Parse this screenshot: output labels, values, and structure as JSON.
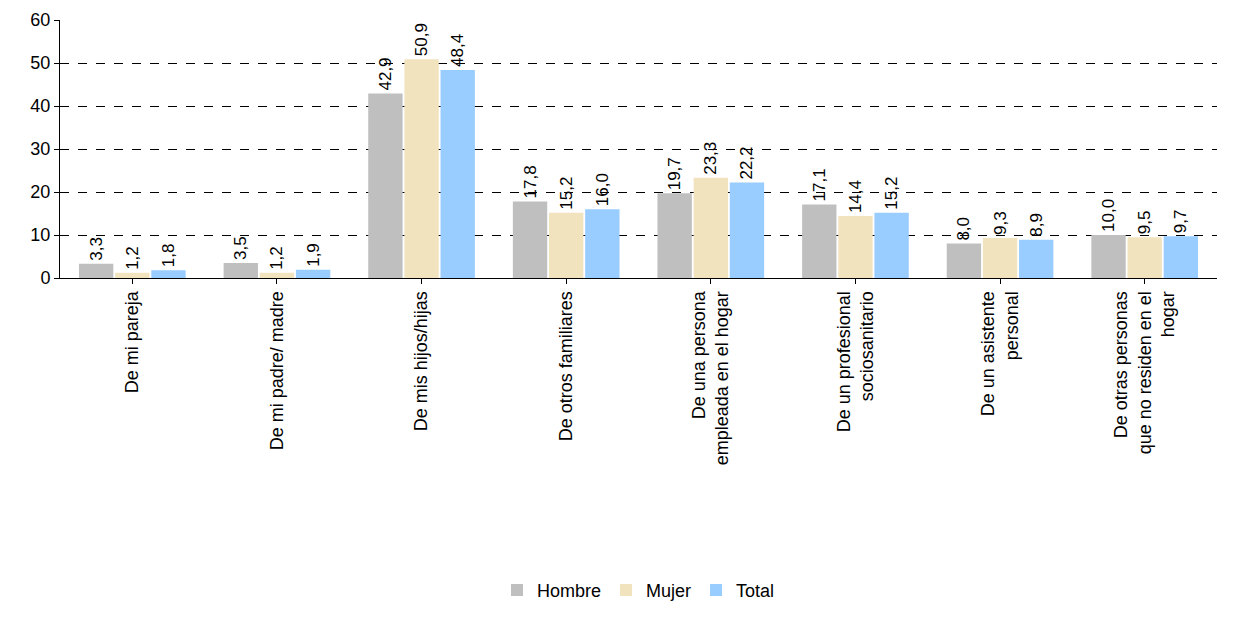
{
  "chart_data": {
    "type": "bar",
    "categories": [
      "De mi pareja",
      "De mi padre/ madre",
      "De mis hijos/hijas",
      "De otros familiares",
      "De una persona empleada en el hogar",
      "De un profesional sociosanitario",
      "De un asistente personal",
      "De otras personas que no residen en el hogar"
    ],
    "series": [
      {
        "name": "Hombre",
        "color": "#bfbfbf",
        "values": [
          3.3,
          3.5,
          42.9,
          17.8,
          19.7,
          17.1,
          8.0,
          10.0
        ],
        "value_labels": [
          "3,3",
          "3,5",
          "42,9",
          "17,8",
          "19,7",
          "17,1",
          "8,0",
          "10,0"
        ]
      },
      {
        "name": "Mujer",
        "color": "#f2e3bf",
        "values": [
          1.2,
          1.2,
          50.9,
          15.2,
          23.3,
          14.4,
          9.3,
          9.5
        ],
        "value_labels": [
          "1,2",
          "1,2",
          "50,9",
          "15,2",
          "23,3",
          "14,4",
          "9,3",
          "9,5"
        ]
      },
      {
        "name": "Total",
        "color": "#99ccff",
        "values": [
          1.8,
          1.9,
          48.4,
          16.0,
          22.2,
          15.2,
          8.9,
          9.7
        ],
        "value_labels": [
          "1,8",
          "1,9",
          "48,4",
          "16,0",
          "22,2",
          "15,2",
          "8,9",
          "9,7"
        ]
      }
    ],
    "ylim": [
      0,
      60
    ],
    "yticks": [
      0,
      10,
      20,
      30,
      40,
      50,
      60
    ],
    "grid": true,
    "data_labels": true,
    "legend": "bottom"
  }
}
